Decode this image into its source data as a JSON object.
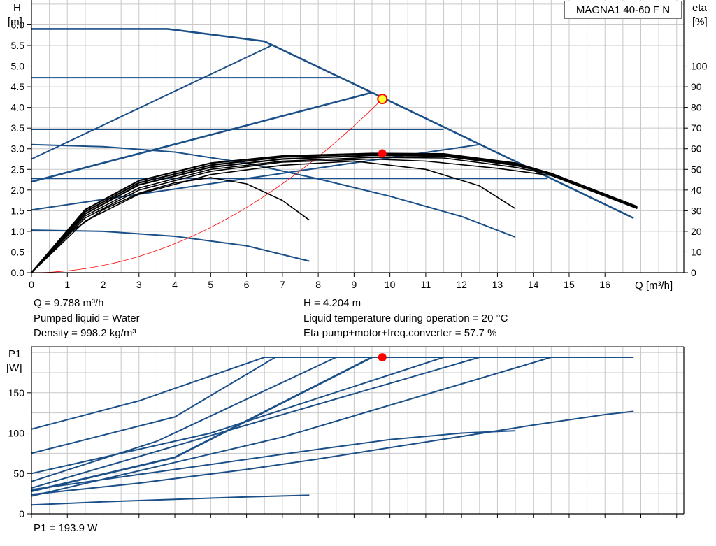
{
  "model_label": "MAGNA1 40-60 F N",
  "info": {
    "q": "Q = 9.788 m³/h",
    "liquid": "Pumped liquid = Water",
    "density": "Density = 998.2 kg/m³",
    "h": "H = 4.204 m",
    "temp": "Liquid temperature during operation = 20 °C",
    "eta": "Eta pump+motor+freq.converter = 57.7 %",
    "p1": "P1 = 193.9 W"
  },
  "chart_data": [
    {
      "name": "head",
      "type": "line",
      "xlabel": "Q [m³/h]",
      "ylabel_line1": "H",
      "ylabel_line2": "[m]",
      "y2label_line1": "eta",
      "y2label_line2": "[%]",
      "xlim": [
        0,
        18.2
      ],
      "ylim": [
        0,
        6.6
      ],
      "xticks": [
        "0",
        "1",
        "2",
        "3",
        "4",
        "5",
        "6",
        "7",
        "8",
        "9",
        "10",
        "11",
        "12",
        "13",
        "14",
        "15",
        "16"
      ],
      "yticks": [
        "0.0",
        "0.5",
        "1.0",
        "1.5",
        "2.0",
        "2.5",
        "3.0",
        "3.5",
        "4.0",
        "4.5",
        "5.0",
        "5.5",
        "6.0"
      ],
      "y2lim": [
        0,
        132
      ],
      "y2ticks": [
        "0",
        "10",
        "20",
        "30",
        "40",
        "50",
        "60",
        "70",
        "80",
        "90",
        "100"
      ],
      "grid": true,
      "head_curves": [
        {
          "kind": "max",
          "points": [
            [
              0,
              5.9
            ],
            [
              3.8,
              5.9
            ],
            [
              6.5,
              5.6
            ],
            [
              9.5,
              4.36
            ],
            [
              16.8,
              1.32
            ]
          ]
        },
        {
          "kind": "constant",
          "points": [
            [
              0,
              4.72
            ],
            [
              8.6,
              4.72
            ]
          ]
        },
        {
          "kind": "constant",
          "points": [
            [
              0,
              3.47
            ],
            [
              11.5,
              3.47
            ]
          ]
        },
        {
          "kind": "constant",
          "points": [
            [
              0,
              2.28
            ],
            [
              14.4,
              2.28
            ]
          ]
        },
        {
          "kind": "proportional",
          "points": [
            [
              0,
              2.75
            ],
            [
              6.7,
              5.5
            ]
          ]
        },
        {
          "kind": "proportional-bold",
          "points": [
            [
              0,
              2.2
            ],
            [
              9.5,
              4.36
            ]
          ]
        },
        {
          "kind": "proportional",
          "points": [
            [
              0,
              1.52
            ],
            [
              12.5,
              3.1
            ]
          ]
        },
        {
          "kind": "fixed-speed",
          "points": [
            [
              0,
              3.1
            ],
            [
              2,
              3.05
            ],
            [
              4,
              2.92
            ],
            [
              6,
              2.65
            ],
            [
              8,
              2.27
            ],
            [
              10,
              1.85
            ],
            [
              12,
              1.36
            ],
            [
              13.5,
              0.86
            ]
          ]
        },
        {
          "kind": "fixed-speed",
          "points": [
            [
              0,
              1.03
            ],
            [
              2,
              1.0
            ],
            [
              4,
              0.88
            ],
            [
              6,
              0.65
            ],
            [
              7.75,
              0.28
            ]
          ]
        }
      ],
      "efficiency_curves": [
        {
          "points": [
            [
              0,
              0
            ],
            [
              1,
              18.5
            ],
            [
              2,
              30.5
            ],
            [
              3,
              38.5
            ],
            [
              4,
              43.5
            ],
            [
              5,
              46
            ],
            [
              6,
              43
            ],
            [
              7,
              35
            ],
            [
              7.75,
              25.5
            ]
          ]
        },
        {
          "points": [
            [
              0,
              0
            ],
            [
              1.5,
              25
            ],
            [
              3,
              38
            ],
            [
              5,
              47.5
            ],
            [
              7,
              52
            ],
            [
              9,
              54
            ],
            [
              11,
              50
            ],
            [
              12.5,
              42
            ],
            [
              13.5,
              31
            ]
          ]
        },
        {
          "points": [
            [
              0,
              0
            ],
            [
              1.5,
              26.5
            ],
            [
              3,
              40
            ],
            [
              5,
              49
            ],
            [
              7,
              53.5
            ],
            [
              9.5,
              55
            ],
            [
              11,
              54
            ],
            [
              13,
              50.5
            ],
            [
              14.5,
              47
            ],
            [
              16.9,
              31
            ]
          ]
        },
        {
          "points": [
            [
              0,
              0
            ],
            [
              1.5,
              27.5
            ],
            [
              3,
              41
            ],
            [
              5,
              50
            ],
            [
              7,
              54
            ],
            [
              9.5,
              55.8
            ],
            [
              11.5,
              55.5
            ],
            [
              13.5,
              51
            ],
            [
              14.5,
              47.5
            ],
            [
              16.9,
              31.5
            ]
          ]
        },
        {
          "points": [
            [
              0,
              0
            ],
            [
              1.5,
              28.5
            ],
            [
              3,
              42.5
            ],
            [
              5,
              51
            ],
            [
              7,
              55
            ],
            [
              9.5,
              56.8
            ],
            [
              11.5,
              56.5
            ],
            [
              13.5,
              52
            ],
            [
              14.5,
              48
            ],
            [
              16.9,
              31.5
            ]
          ]
        },
        {
          "points": [
            [
              0,
              0
            ],
            [
              1.5,
              29.5
            ],
            [
              3,
              43.5
            ],
            [
              5,
              52
            ],
            [
              7,
              56
            ],
            [
              9.5,
              57.5
            ],
            [
              11.5,
              57
            ],
            [
              13.5,
              52.5
            ],
            [
              14.5,
              48
            ],
            [
              16.9,
              31.5
            ]
          ]
        },
        {
          "points": [
            [
              0,
              0
            ],
            [
              1.5,
              30.5
            ],
            [
              3,
              44.5
            ],
            [
              5,
              53
            ],
            [
              7,
              56.5
            ],
            [
              9.5,
              57.7
            ],
            [
              11.5,
              57.5
            ],
            [
              13.5,
              53
            ],
            [
              14.5,
              48
            ],
            [
              16.9,
              32
            ]
          ]
        }
      ],
      "system_curve": {
        "coefficient": 0.04388
      },
      "duty_points": [
        {
          "kind": "head",
          "x": 9.788,
          "y": 4.204
        },
        {
          "kind": "eta",
          "x": 9.788,
          "y": 57.7
        }
      ]
    },
    {
      "name": "power",
      "type": "line",
      "xlabel": "",
      "ylabel_line1": "P1",
      "ylabel_line2": "[W]",
      "xlim": [
        0,
        18.2
      ],
      "ylim": [
        0,
        207
      ],
      "yticks": [
        "0",
        "50",
        "100",
        "150"
      ],
      "grid": true,
      "power_curves": [
        {
          "points": [
            [
              0,
              105
            ],
            [
              3,
              140
            ],
            [
              6.5,
              194
            ],
            [
              16.8,
              194
            ]
          ]
        },
        {
          "points": [
            [
              0,
              75
            ],
            [
              4,
              120
            ],
            [
              6.8,
              194
            ]
          ]
        },
        {
          "points": [
            [
              0,
              40
            ],
            [
              3.5,
              90
            ],
            [
              8.5,
              194
            ]
          ]
        },
        {
          "points": [
            [
              0,
              28
            ],
            [
              4,
              70
            ],
            [
              9.5,
              194
            ]
          ],
          "bold": true
        },
        {
          "points": [
            [
              0,
              50
            ],
            [
              5,
              100
            ],
            [
              11.5,
              194
            ]
          ]
        },
        {
          "points": [
            [
              0,
              32
            ],
            [
              6,
              110
            ],
            [
              12.5,
              194
            ]
          ]
        },
        {
          "points": [
            [
              0,
              22
            ],
            [
              7,
              95
            ],
            [
              14.5,
              194
            ]
          ]
        },
        {
          "points": [
            [
              0,
              24
            ],
            [
              3,
              38
            ],
            [
              6,
              55
            ],
            [
              8,
              68
            ],
            [
              10,
              82
            ],
            [
              12,
              96
            ],
            [
              14,
              110
            ],
            [
              16,
              123
            ],
            [
              16.8,
              127
            ]
          ]
        },
        {
          "points": [
            [
              0,
              30
            ],
            [
              4,
              55
            ],
            [
              8,
              80
            ],
            [
              10,
              92
            ],
            [
              12,
              100
            ],
            [
              13.5,
              103
            ]
          ]
        },
        {
          "points": [
            [
              0,
              11
            ],
            [
              2,
              15
            ],
            [
              4,
              18
            ],
            [
              6,
              21
            ],
            [
              7.75,
              23
            ]
          ]
        }
      ],
      "duty_point": {
        "x": 9.788,
        "y": 193.9
      }
    }
  ]
}
